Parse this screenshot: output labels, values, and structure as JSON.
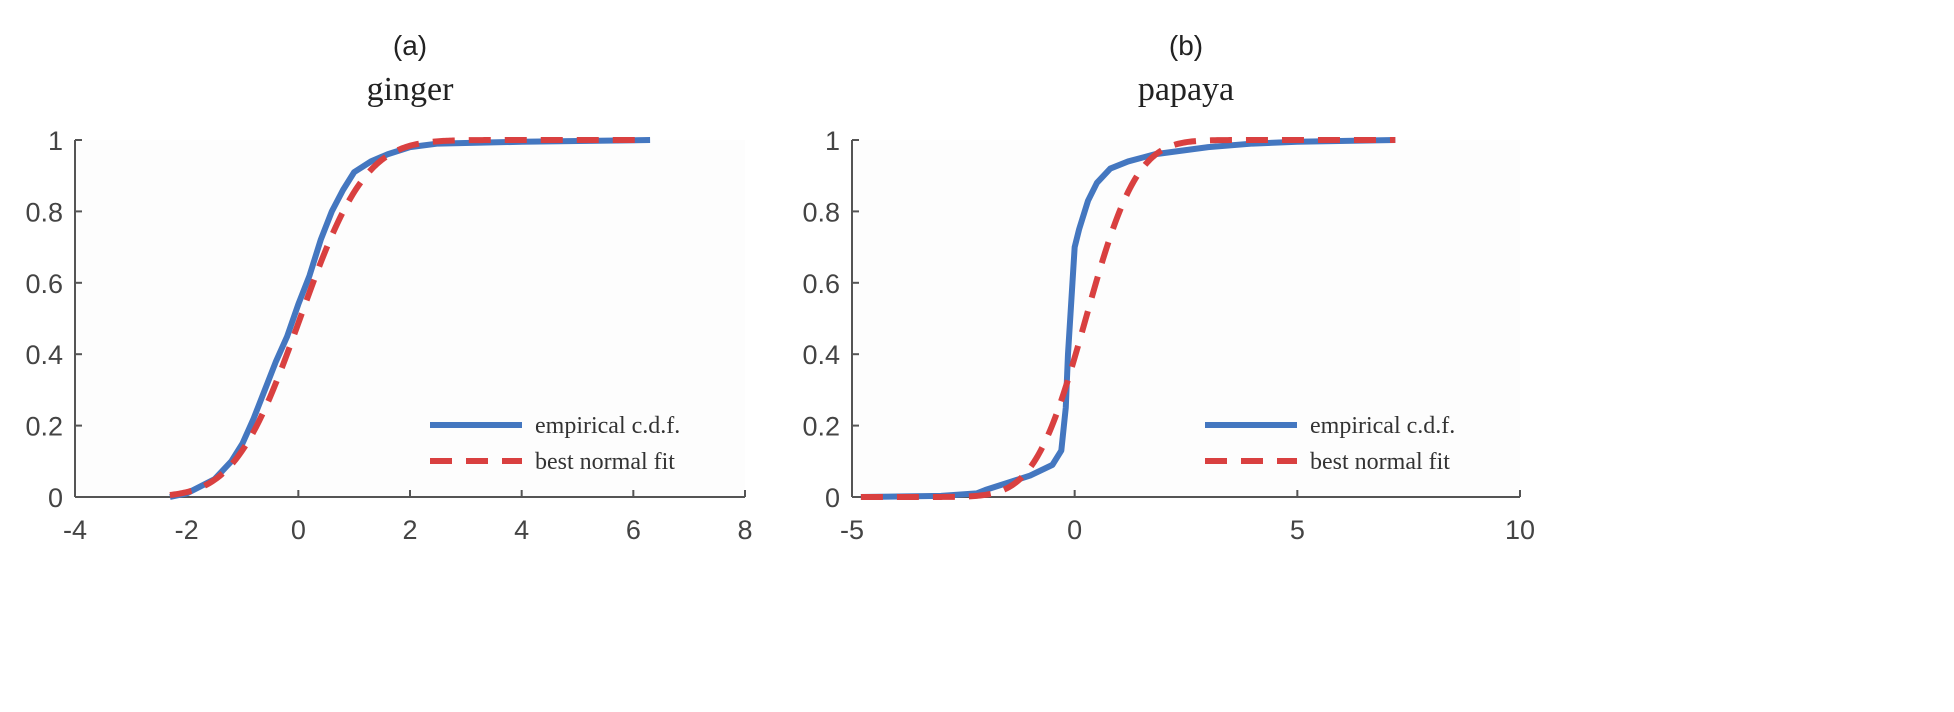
{
  "colors": {
    "empirical": "#4477c0",
    "fit": "#d94040",
    "axis": "#555555"
  },
  "chart_data": [
    {
      "type": "line",
      "panel_label": "(a)",
      "title": "ginger",
      "xlabel": "",
      "ylabel": "",
      "xlim": [
        -4,
        8
      ],
      "ylim": [
        0,
        1
      ],
      "xticks": [
        -4,
        -2,
        0,
        2,
        4,
        6,
        8
      ],
      "yticks": [
        0,
        0.2,
        0.4,
        0.6,
        0.8,
        1
      ],
      "xtick_labels": [
        "-4",
        "-2",
        "0",
        "2",
        "4",
        "6",
        "8"
      ],
      "ytick_labels": [
        "0",
        "0.2",
        "0.4",
        "0.6",
        "0.8",
        "1"
      ],
      "legend": {
        "placement": "bottom-right",
        "entries": [
          "empirical c.d.f.",
          "best normal fit"
        ]
      },
      "series": [
        {
          "name": "empirical c.d.f.",
          "style": "solid",
          "points": [
            [
              -2.3,
              0
            ],
            [
              -2,
              0.01
            ],
            [
              -1.5,
              0.05
            ],
            [
              -1.2,
              0.1
            ],
            [
              -1,
              0.15
            ],
            [
              -0.8,
              0.22
            ],
            [
              -0.6,
              0.3
            ],
            [
              -0.4,
              0.38
            ],
            [
              -0.2,
              0.45
            ],
            [
              0,
              0.54
            ],
            [
              0.2,
              0.62
            ],
            [
              0.4,
              0.72
            ],
            [
              0.6,
              0.8
            ],
            [
              0.8,
              0.86
            ],
            [
              1,
              0.91
            ],
            [
              1.3,
              0.94
            ],
            [
              1.6,
              0.96
            ],
            [
              2,
              0.98
            ],
            [
              2.5,
              0.99
            ],
            [
              4,
              0.995
            ],
            [
              6.3,
              1
            ]
          ]
        },
        {
          "name": "best normal fit",
          "style": "dashed",
          "normal": {
            "mean": 0.03,
            "sd": 0.92
          },
          "range": [
            -2.3,
            6.1
          ]
        }
      ]
    },
    {
      "type": "line",
      "panel_label": "(b)",
      "title": "papaya",
      "xlabel": "",
      "ylabel": "",
      "xlim": [
        -5,
        10
      ],
      "ylim": [
        0,
        1
      ],
      "xticks": [
        -5,
        0,
        5,
        10
      ],
      "yticks": [
        0,
        0.2,
        0.4,
        0.6,
        0.8,
        1
      ],
      "xtick_labels": [
        "-5",
        "0",
        "5",
        "10"
      ],
      "ytick_labels": [
        "0",
        "0.2",
        "0.4",
        "0.6",
        "0.8",
        "1"
      ],
      "legend": {
        "placement": "bottom-right",
        "entries": [
          "empirical c.d.f.",
          "best normal fit"
        ]
      },
      "series": [
        {
          "name": "empirical c.d.f.",
          "style": "solid",
          "points": [
            [
              -4.8,
              0
            ],
            [
              -3,
              0.003
            ],
            [
              -2.2,
              0.01
            ],
            [
              -2,
              0.02
            ],
            [
              -1.5,
              0.04
            ],
            [
              -1,
              0.06
            ],
            [
              -0.5,
              0.09
            ],
            [
              -0.3,
              0.13
            ],
            [
              -0.2,
              0.25
            ],
            [
              -0.15,
              0.4
            ],
            [
              -0.1,
              0.5
            ],
            [
              -0.05,
              0.6
            ],
            [
              0,
              0.7
            ],
            [
              0.1,
              0.75
            ],
            [
              0.3,
              0.83
            ],
            [
              0.5,
              0.88
            ],
            [
              0.8,
              0.92
            ],
            [
              1.2,
              0.94
            ],
            [
              1.8,
              0.96
            ],
            [
              3,
              0.98
            ],
            [
              4,
              0.99
            ],
            [
              5,
              0.995
            ],
            [
              7.2,
              1
            ]
          ]
        },
        {
          "name": "best normal fit",
          "style": "dashed",
          "normal": {
            "mean": 0.25,
            "sd": 0.9
          },
          "range": [
            -4.8,
            7.2
          ]
        }
      ]
    }
  ]
}
